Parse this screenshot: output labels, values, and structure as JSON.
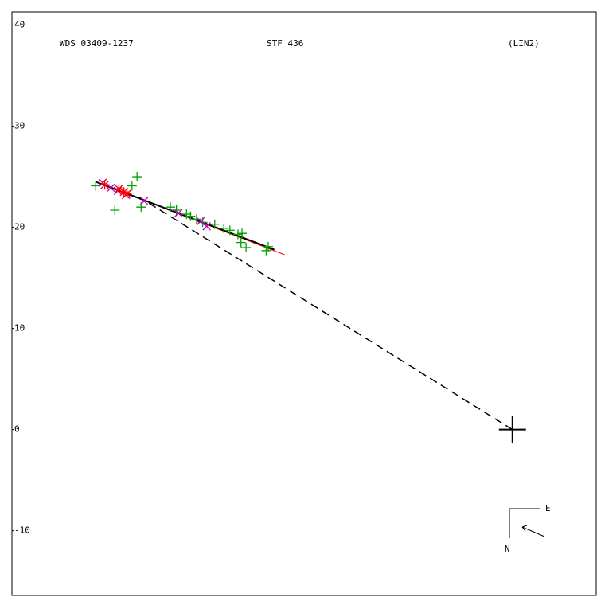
{
  "chart_data": {
    "type": "scatter",
    "title": "WDS 03409-1237",
    "subtitle": "STF 436",
    "annotation": "(LIN2)",
    "compass": {
      "east": "E",
      "north": "N"
    },
    "xlim": [
      -49.6,
      8.3
    ],
    "ylim": [
      -16.4,
      41.3
    ],
    "yticks": [
      40,
      30,
      20,
      10,
      0,
      -10
    ],
    "primary": {
      "x": 0,
      "y": 0,
      "color": "#000000"
    },
    "series": [
      {
        "marker": "plus",
        "color": "#00a000",
        "x": [
          -41.3,
          -39.4,
          -37.2,
          -37.7,
          -36.8,
          -33.9,
          -33.3,
          -32.3,
          -31.9,
          -31.3,
          -30.7,
          -29.5,
          -28.6,
          -28.0,
          -27.2,
          -26.8,
          -26.9,
          -26.4,
          -24.2,
          -24.4
        ],
        "values": [
          24.1,
          21.7,
          25.0,
          24.1,
          22.0,
          22.0,
          21.7,
          21.3,
          21.1,
          20.8,
          20.5,
          20.3,
          19.9,
          19.7,
          19.3,
          19.4,
          18.5,
          18.0,
          18.1,
          17.7
        ]
      },
      {
        "marker": "x",
        "color": "#c000c0",
        "x": [
          -40.6,
          -39.8,
          -39.1,
          -38.3,
          -36.5,
          -33.1,
          -30.9,
          -30.3
        ],
        "values": [
          24.4,
          23.9,
          23.6,
          23.2,
          22.6,
          21.4,
          20.6,
          20.1
        ]
      },
      {
        "marker": "star",
        "color": "#ff0000",
        "x": [
          -40.4,
          -39.0,
          -38.5,
          -38.2
        ],
        "values": [
          24.2,
          23.8,
          23.5,
          23.3
        ]
      }
    ],
    "lines": [
      {
        "color": "#ff0000",
        "width": 1,
        "dash": false,
        "x": [
          -41.3,
          -22.6
        ],
        "values": [
          24.5,
          17.3
        ]
      },
      {
        "color": "#000000",
        "width": 2,
        "dash": false,
        "x": [
          -41.3,
          -23.6
        ],
        "values": [
          24.5,
          17.8
        ]
      },
      {
        "color": "#000000",
        "width": 1.5,
        "dash": true,
        "x": [
          0,
          -37.0
        ],
        "values": [
          0,
          23.0
        ]
      }
    ]
  }
}
